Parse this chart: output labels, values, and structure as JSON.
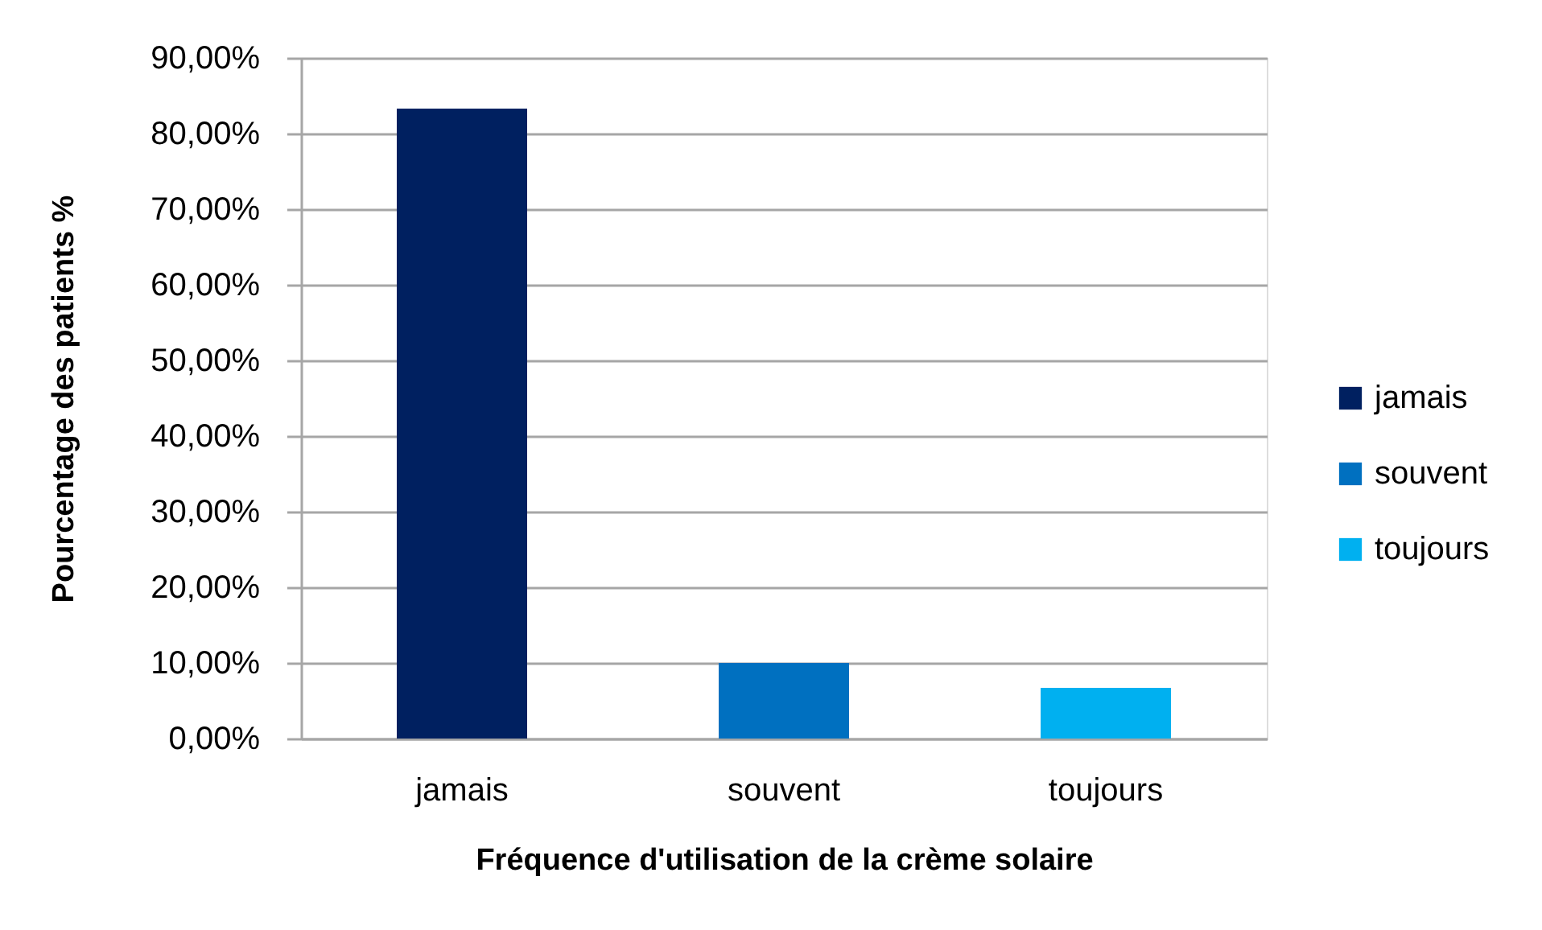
{
  "chart_data": {
    "type": "bar",
    "xlabel": "Fréquence d'utilisation de la crème solaire",
    "ylabel": "Pourcentage des patients %",
    "categories": [
      "jamais",
      "souvent",
      "toujours"
    ],
    "series": [
      {
        "name": "jamais",
        "color": "#002060",
        "values": [
          83.3,
          null,
          null
        ]
      },
      {
        "name": "souvent",
        "color": "#0070c0",
        "values": [
          null,
          10.0,
          null
        ]
      },
      {
        "name": "toujours",
        "color": "#00b0f0",
        "values": [
          null,
          null,
          6.7
        ]
      }
    ],
    "ylim": [
      0,
      90
    ],
    "yticks": [
      {
        "value": 0,
        "label": "0,00%"
      },
      {
        "value": 10,
        "label": "10,00%"
      },
      {
        "value": 20,
        "label": "20,00%"
      },
      {
        "value": 30,
        "label": "30,00%"
      },
      {
        "value": 40,
        "label": "40,00%"
      },
      {
        "value": 50,
        "label": "50,00%"
      },
      {
        "value": 60,
        "label": "60,00%"
      },
      {
        "value": 70,
        "label": "70,00%"
      },
      {
        "value": 80,
        "label": "80,00%"
      },
      {
        "value": 90,
        "label": "90,00%"
      }
    ],
    "grid": "y",
    "legend": "right"
  }
}
